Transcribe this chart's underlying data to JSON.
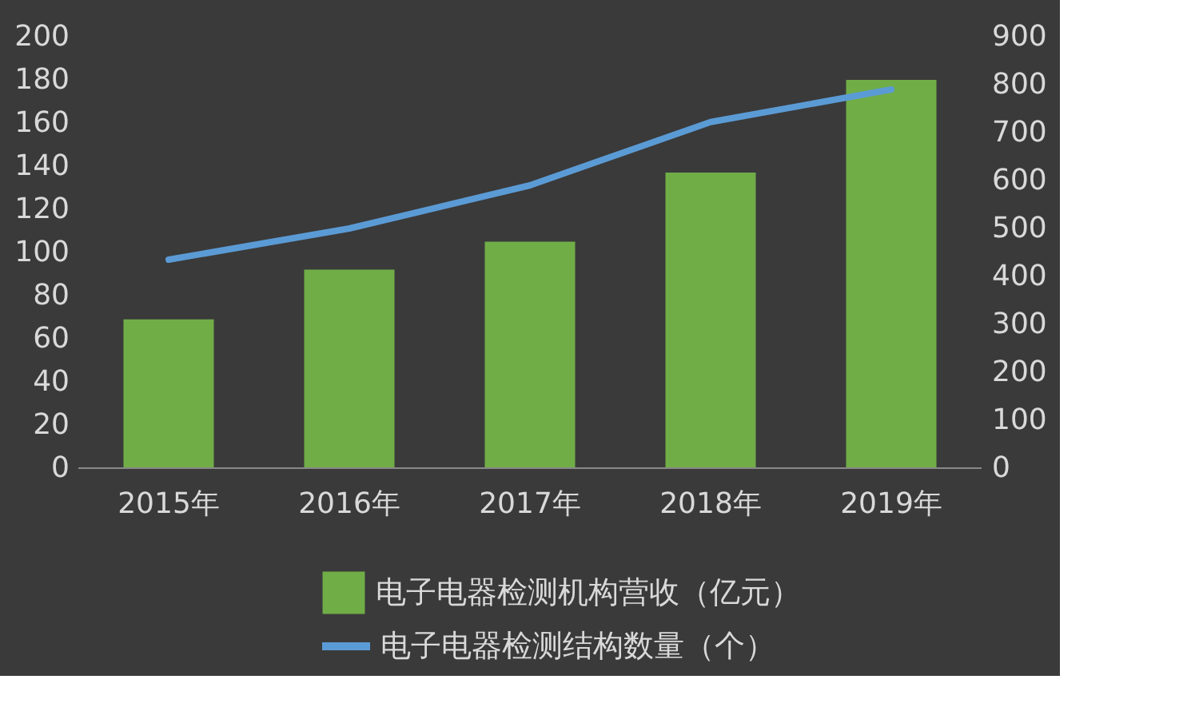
{
  "chart_data": {
    "type": "bar",
    "categories": [
      "2015年",
      "2016年",
      "2017年",
      "2018年",
      "2019年"
    ],
    "series": [
      {
        "name": "电子电器检测机构营收（亿元）",
        "color": "#70ad47",
        "values": [
          69,
          92,
          105,
          137,
          180
        ]
      },
      {
        "name": "电子电器检测结构数量（个）",
        "type": "line",
        "axis": "y2",
        "color": "#5b9bd5",
        "values": [
          435,
          500,
          590,
          722,
          790
        ]
      }
    ],
    "ylim": [
      0,
      200
    ],
    "yticks": [
      0,
      20,
      40,
      60,
      80,
      100,
      120,
      140,
      160,
      180,
      200
    ],
    "y2lim": [
      0,
      900
    ],
    "y2ticks": [
      0,
      100,
      200,
      300,
      400,
      500,
      600,
      700,
      800,
      900
    ],
    "legend": "bottom"
  }
}
